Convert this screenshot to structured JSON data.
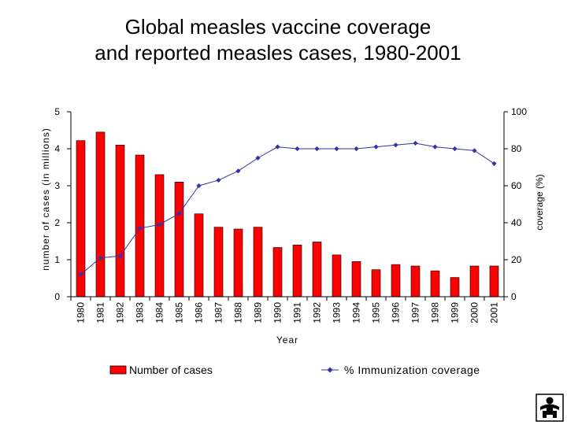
{
  "chart_data": {
    "type": "bar",
    "title_lines": [
      "Global measles vaccine coverage",
      "and reported measles cases, 1980-2001"
    ],
    "xlabel": "Year",
    "ylabel_left": "number of cases (in millions)",
    "ylabel_right": "coverage (%)",
    "ylim_left": [
      0,
      5
    ],
    "ylim_right": [
      0,
      100
    ],
    "yticks_left": [
      "0",
      "1",
      "2",
      "3",
      "4",
      "5"
    ],
    "yticks_right": [
      "0",
      "20",
      "40",
      "60",
      "80",
      "100"
    ],
    "categories": [
      "1980",
      "1981",
      "1982",
      "1983",
      "1984",
      "1985",
      "1986",
      "1987",
      "1988",
      "1989",
      "1990",
      "1991",
      "1992",
      "1993",
      "1994",
      "1995",
      "1996",
      "1997",
      "1998",
      "1999",
      "2000",
      "2001"
    ],
    "series": [
      {
        "name": "Number of cases",
        "kind": "bar",
        "axis": "left",
        "color": "#ff0000",
        "values": [
          4.22,
          4.45,
          4.1,
          3.83,
          3.3,
          3.1,
          2.24,
          1.88,
          1.83,
          1.88,
          1.33,
          1.4,
          1.48,
          1.13,
          0.95,
          0.73,
          0.87,
          0.83,
          0.7,
          0.52,
          0.83,
          0.83
        ]
      },
      {
        "name": "% Immunization coverage",
        "kind": "line",
        "axis": "right",
        "color": "#3333aa",
        "values": [
          12,
          21,
          22,
          37,
          39,
          45,
          60,
          63,
          68,
          75,
          81,
          80,
          80,
          80,
          80,
          81,
          82,
          83,
          81,
          80,
          79,
          72
        ]
      }
    ],
    "legend_position": "bottom"
  }
}
